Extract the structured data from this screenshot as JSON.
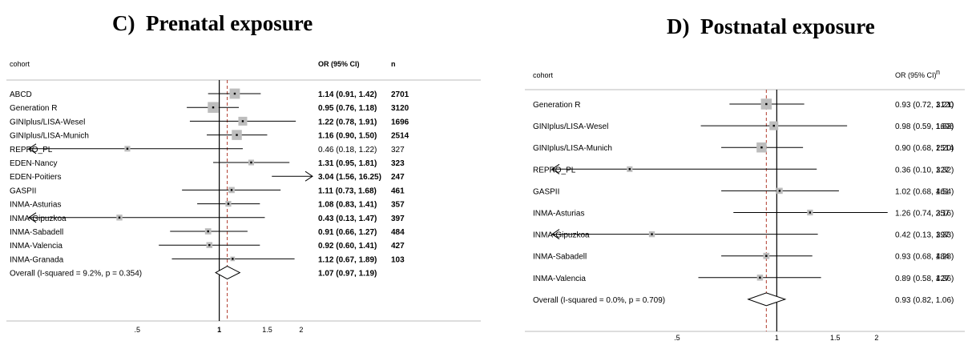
{
  "panels": {
    "c": {
      "title": "C)  Prenatal exposure"
    },
    "d": {
      "title": "D)  Postnatal exposure"
    }
  },
  "chart_data": [
    {
      "type": "forest",
      "title": "C)  Prenatal exposure",
      "headers": {
        "cohort": "cohort",
        "or": "OR (95% CI)",
        "n": "n"
      },
      "xscale": "log",
      "xticks": [
        0.5,
        1,
        1.5,
        2
      ],
      "xtick_labels": [
        ".5",
        "1",
        "1.5",
        "2"
      ],
      "reference_line": 1,
      "overall_line": 1.07,
      "rows": [
        {
          "cohort": "ABCD",
          "or": 1.14,
          "lo": 0.91,
          "hi": 1.42,
          "label": "1.14 (0.91, 1.42)",
          "n": "2701",
          "bold": true
        },
        {
          "cohort": "Generation R",
          "or": 0.95,
          "lo": 0.76,
          "hi": 1.18,
          "label": "0.95 (0.76, 1.18)",
          "n": "3120",
          "bold": true
        },
        {
          "cohort": "GINIplus/LISA-Wesel",
          "or": 1.22,
          "lo": 0.78,
          "hi": 1.91,
          "label": "1.22 (0.78, 1.91)",
          "n": "1696",
          "bold": true
        },
        {
          "cohort": "GINIplus/LISA-Munich",
          "or": 1.16,
          "lo": 0.9,
          "hi": 1.5,
          "label": "1.16 (0.90, 1.50)",
          "n": "2514",
          "bold": true
        },
        {
          "cohort": "REPRO_PL",
          "or": 0.46,
          "lo": 0.18,
          "hi": 1.22,
          "label": "0.46 (0.18, 1.22)",
          "n": "327",
          "bold": false
        },
        {
          "cohort": "EDEN-Nancy",
          "or": 1.31,
          "lo": 0.95,
          "hi": 1.81,
          "label": "1.31 (0.95, 1.81)",
          "n": "323",
          "bold": true
        },
        {
          "cohort": "EDEN-Poitiers",
          "or": 3.04,
          "lo": 1.56,
          "hi": 16.25,
          "label": "3.04 (1.56, 16.25)",
          "n": "247",
          "bold": true
        },
        {
          "cohort": "GASPII",
          "or": 1.11,
          "lo": 0.73,
          "hi": 1.68,
          "label": "1.11 (0.73, 1.68)",
          "n": "461",
          "bold": true
        },
        {
          "cohort": "INMA-Asturias",
          "or": 1.08,
          "lo": 0.83,
          "hi": 1.41,
          "label": "1.08 (0.83, 1.41)",
          "n": "357",
          "bold": true
        },
        {
          "cohort": "INMA-Gipuzkoa",
          "or": 0.43,
          "lo": 0.13,
          "hi": 1.47,
          "label": "0.43 (0.13, 1.47)",
          "n": "397",
          "bold": true
        },
        {
          "cohort": "INMA-Sabadell",
          "or": 0.91,
          "lo": 0.66,
          "hi": 1.27,
          "label": "0.91 (0.66, 1.27)",
          "n": "484",
          "bold": true
        },
        {
          "cohort": "INMA-Valencia",
          "or": 0.92,
          "lo": 0.6,
          "hi": 1.41,
          "label": "0.92 (0.60, 1.41)",
          "n": "427",
          "bold": true
        },
        {
          "cohort": "INMA-Granada",
          "or": 1.12,
          "lo": 0.67,
          "hi": 1.89,
          "label": "1.12 (0.67, 1.89)",
          "n": "103",
          "bold": true
        }
      ],
      "overall": {
        "label": "Overall  (I-squared = 9.2%, p = 0.354)",
        "or": 1.07,
        "lo": 0.97,
        "hi": 1.19,
        "value": "1.07 (0.97, 1.19)",
        "bold": true
      }
    },
    {
      "type": "forest",
      "title": "D)  Postnatal exposure",
      "headers": {
        "cohort": "cohort",
        "or": "OR (95% CI)",
        "n": "n"
      },
      "xscale": "log",
      "xticks": [
        0.5,
        1,
        1.5,
        2
      ],
      "xtick_labels": [
        ".5",
        "1",
        "1.5",
        "2"
      ],
      "reference_line": 1,
      "overall_line": 0.93,
      "rows": [
        {
          "cohort": "Generation R",
          "or": 0.93,
          "lo": 0.72,
          "hi": 1.21,
          "label": "0.93 (0.72, 1.21)",
          "n": "3120",
          "bold": false
        },
        {
          "cohort": "GINIplus/LISA-Wesel",
          "or": 0.98,
          "lo": 0.59,
          "hi": 1.63,
          "label": "0.98 (0.59, 1.63)",
          "n": "1696",
          "bold": false
        },
        {
          "cohort": "GINIplus/LISA-Munich",
          "or": 0.9,
          "lo": 0.68,
          "hi": 1.2,
          "label": "0.90 (0.68, 1.20)",
          "n": "2514",
          "bold": false
        },
        {
          "cohort": "REPRO_PL",
          "or": 0.36,
          "lo": 0.1,
          "hi": 1.32,
          "label": "0.36 (0.10, 1.32)",
          "n": "327",
          "bold": false
        },
        {
          "cohort": "GASPII",
          "or": 1.02,
          "lo": 0.68,
          "hi": 1.54,
          "label": "1.02 (0.68, 1.54)",
          "n": "461",
          "bold": false
        },
        {
          "cohort": "INMA-Asturias",
          "or": 1.26,
          "lo": 0.74,
          "hi": 2.16,
          "label": "1.26 (0.74, 2.16)",
          "n": "357",
          "bold": false
        },
        {
          "cohort": "INMA-Gipuzkoa",
          "or": 0.42,
          "lo": 0.13,
          "hi": 1.33,
          "label": "0.42 (0.13, 1.33)",
          "n": "397",
          "bold": false
        },
        {
          "cohort": "INMA-Sabadell",
          "or": 0.93,
          "lo": 0.68,
          "hi": 1.28,
          "label": "0.93 (0.68, 1.28)",
          "n": "484",
          "bold": false
        },
        {
          "cohort": "INMA-Valencia",
          "or": 0.89,
          "lo": 0.58,
          "hi": 1.36,
          "label": "0.89 (0.58, 1.36)",
          "n": "427",
          "bold": false
        }
      ],
      "overall": {
        "label": "Overall  (I-squared = 0.0%, p = 0.709)",
        "or": 0.93,
        "lo": 0.82,
        "hi": 1.06,
        "value": "0.93 (0.82, 1.06)",
        "bold": false
      }
    }
  ]
}
